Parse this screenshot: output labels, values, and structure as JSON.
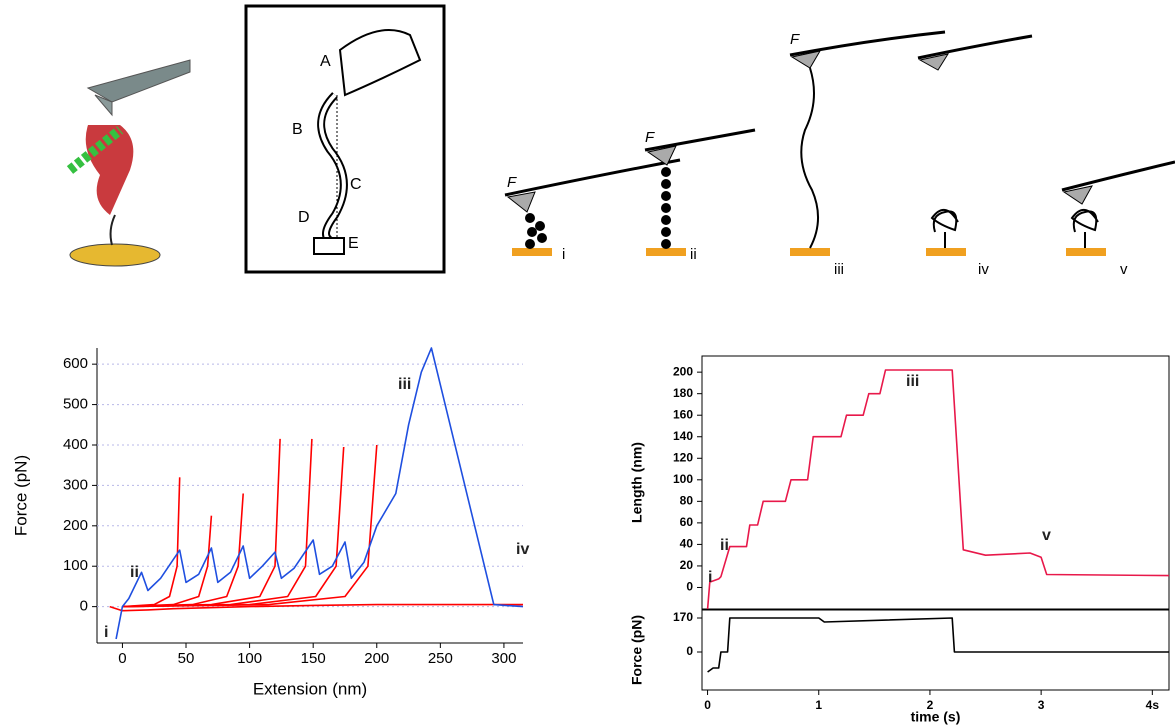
{
  "illustrations": {
    "hand_labels": [
      "A",
      "B",
      "C",
      "D",
      "E"
    ],
    "stage_labels": [
      "i",
      "ii",
      "iii",
      "iv",
      "v"
    ],
    "force_label": "F"
  },
  "chart_data": [
    {
      "type": "line",
      "xlabel": "Extension (nm)",
      "ylabel": "Force (pN)",
      "xlim": [
        -20,
        315
      ],
      "xticks": [
        0,
        50,
        100,
        150,
        200,
        250,
        300
      ],
      "ylim": [
        -90,
        640
      ],
      "yticks": [
        0,
        100,
        200,
        300,
        400,
        500,
        600
      ],
      "grid": true,
      "annotations": [
        "i",
        "ii",
        "iii",
        "iv"
      ],
      "series": [
        {
          "color": "#ff0000",
          "x": [
            -10,
            0,
            20,
            40,
            100,
            150,
            200,
            250,
            315
          ],
          "values": [
            0,
            -10,
            -8,
            -5,
            0,
            3,
            5,
            5,
            5
          ]
        },
        {
          "color": "#ff0000",
          "x": [
            0,
            25,
            37,
            43,
            45
          ],
          "values": [
            0,
            5,
            25,
            100,
            320
          ]
        },
        {
          "color": "#ff0000",
          "x": [
            0,
            40,
            60,
            67,
            70
          ],
          "values": [
            0,
            5,
            25,
            100,
            225
          ]
        },
        {
          "color": "#ff0000",
          "x": [
            0,
            55,
            82,
            91,
            95
          ],
          "values": [
            0,
            5,
            25,
            100,
            280
          ]
        },
        {
          "color": "#ff0000",
          "x": [
            0,
            70,
            108,
            120,
            124
          ],
          "values": [
            0,
            5,
            25,
            100,
            415
          ]
        },
        {
          "color": "#ff0000",
          "x": [
            0,
            85,
            130,
            144,
            149
          ],
          "values": [
            0,
            5,
            25,
            100,
            415
          ]
        },
        {
          "color": "#ff0000",
          "x": [
            0,
            100,
            152,
            168,
            174
          ],
          "values": [
            0,
            5,
            25,
            100,
            395
          ]
        },
        {
          "color": "#ff0000",
          "x": [
            0,
            115,
            175,
            193,
            200
          ],
          "values": [
            0,
            5,
            25,
            100,
            400
          ]
        },
        {
          "color": "#1f4fe0",
          "x": [
            -5,
            0,
            5,
            15,
            20,
            30,
            45,
            50,
            60,
            70,
            75,
            85,
            95,
            100,
            110,
            120,
            125,
            135,
            150,
            155,
            165,
            175,
            180,
            190,
            200,
            215,
            225,
            235,
            243,
            292,
            315
          ],
          "values": [
            -80,
            0,
            20,
            85,
            40,
            70,
            140,
            60,
            80,
            145,
            60,
            85,
            150,
            70,
            100,
            135,
            70,
            95,
            165,
            80,
            100,
            160,
            70,
            110,
            200,
            280,
            450,
            580,
            640,
            5,
            0
          ]
        }
      ]
    },
    {
      "type": "line",
      "ylabel": "Length (nm)",
      "xlim": [
        -0.05,
        4.15
      ],
      "ylim": [
        -20,
        215
      ],
      "yticks": [
        0,
        20,
        40,
        60,
        80,
        100,
        120,
        140,
        160,
        180,
        200
      ],
      "grid": false,
      "annotations": [
        "i",
        "ii",
        "iii",
        "v"
      ],
      "series": [
        {
          "color": "#e8184a",
          "x": [
            0,
            0.02,
            0.1,
            0.12,
            0.2,
            0.22,
            0.35,
            0.38,
            0.45,
            0.5,
            0.7,
            0.75,
            0.9,
            0.95,
            1.2,
            1.25,
            1.4,
            1.45,
            1.55,
            1.6,
            2.2,
            2.3,
            2.5,
            2.9,
            3.0,
            3.05,
            4.15
          ],
          "values": [
            -20,
            5,
            8,
            10,
            38,
            38,
            38,
            58,
            58,
            80,
            80,
            100,
            100,
            140,
            140,
            160,
            160,
            180,
            180,
            202,
            202,
            35,
            30,
            32,
            28,
            12,
            11
          ]
        }
      ]
    },
    {
      "type": "line",
      "xlabel": "time (s)",
      "ylabel": "Force (pN)",
      "xlim": [
        -0.05,
        4.15
      ],
      "xticks": [
        0,
        1,
        2,
        3,
        {
          "value": 4,
          "label": "4s"
        }
      ],
      "ylim": [
        -190,
        210
      ],
      "yticks": [
        0,
        170
      ],
      "grid": false,
      "series": [
        {
          "color": "#000000",
          "x": [
            0,
            0.05,
            0.1,
            0.12,
            0.18,
            0.2,
            1.0,
            1.05,
            2.2,
            2.22,
            4.15
          ],
          "values": [
            -100,
            -80,
            -80,
            0,
            0,
            170,
            170,
            150,
            170,
            0,
            0
          ]
        }
      ]
    }
  ]
}
